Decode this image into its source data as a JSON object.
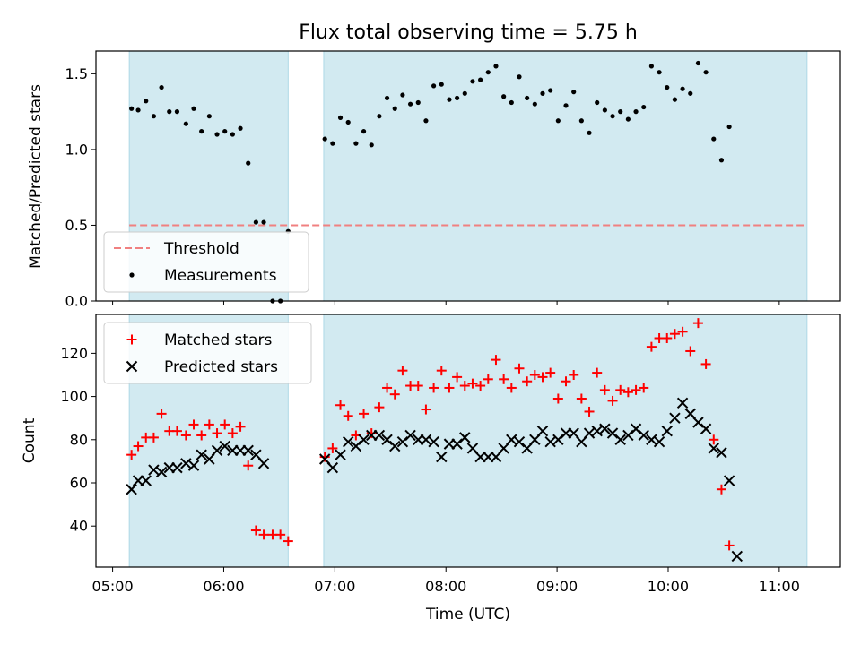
{
  "title": "Flux total observing time = 5.75 h",
  "xlabel": "Time (UTC)",
  "colors": {
    "band": "#add8e6",
    "threshold": "#f08080",
    "matched": "#ff0000",
    "predicted": "#000000",
    "measurement": "#000000"
  },
  "chart_data": [
    {
      "type": "scatter",
      "ylabel": "Matched/Predicted stars",
      "ylim": [
        0,
        1.65
      ],
      "yticks": [
        "0.0",
        "0.5",
        "1.0",
        "1.5"
      ],
      "threshold": 0.5,
      "xlim_hours": [
        4.85,
        11.55
      ],
      "observing_windows_hours": [
        [
          5.15,
          6.58
        ],
        [
          6.9,
          11.25
        ]
      ],
      "legend": {
        "placement": "lower-left",
        "entries": [
          "Threshold",
          "Measurements"
        ]
      },
      "series": [
        {
          "name": "Measurements",
          "marker": "dot",
          "points": [
            [
              5.17,
              1.27
            ],
            [
              5.23,
              1.26
            ],
            [
              5.3,
              1.32
            ],
            [
              5.37,
              1.22
            ],
            [
              5.44,
              1.41
            ],
            [
              5.51,
              1.25
            ],
            [
              5.58,
              1.25
            ],
            [
              5.66,
              1.17
            ],
            [
              5.73,
              1.27
            ],
            [
              5.8,
              1.12
            ],
            [
              5.87,
              1.22
            ],
            [
              5.94,
              1.1
            ],
            [
              6.01,
              1.12
            ],
            [
              6.08,
              1.1
            ],
            [
              6.15,
              1.14
            ],
            [
              6.22,
              0.91
            ],
            [
              6.29,
              0.52
            ],
            [
              6.36,
              0.52
            ],
            [
              6.44,
              0.0
            ],
            [
              6.51,
              0.0
            ],
            [
              6.58,
              0.46
            ],
            [
              6.91,
              1.07
            ],
            [
              6.98,
              1.04
            ],
            [
              7.05,
              1.21
            ],
            [
              7.12,
              1.18
            ],
            [
              7.19,
              1.04
            ],
            [
              7.26,
              1.12
            ],
            [
              7.33,
              1.03
            ],
            [
              7.4,
              1.22
            ],
            [
              7.47,
              1.34
            ],
            [
              7.54,
              1.27
            ],
            [
              7.61,
              1.36
            ],
            [
              7.68,
              1.3
            ],
            [
              7.75,
              1.31
            ],
            [
              7.82,
              1.19
            ],
            [
              7.89,
              1.42
            ],
            [
              7.96,
              1.43
            ],
            [
              8.03,
              1.33
            ],
            [
              8.1,
              1.34
            ],
            [
              8.17,
              1.37
            ],
            [
              8.24,
              1.45
            ],
            [
              8.31,
              1.46
            ],
            [
              8.38,
              1.51
            ],
            [
              8.45,
              1.55
            ],
            [
              8.52,
              1.35
            ],
            [
              8.59,
              1.31
            ],
            [
              8.66,
              1.48
            ],
            [
              8.73,
              1.34
            ],
            [
              8.8,
              1.3
            ],
            [
              8.87,
              1.37
            ],
            [
              8.94,
              1.39
            ],
            [
              9.01,
              1.19
            ],
            [
              9.08,
              1.29
            ],
            [
              9.15,
              1.38
            ],
            [
              9.22,
              1.19
            ],
            [
              9.29,
              1.11
            ],
            [
              9.36,
              1.31
            ],
            [
              9.43,
              1.26
            ],
            [
              9.5,
              1.22
            ],
            [
              9.57,
              1.25
            ],
            [
              9.64,
              1.2
            ],
            [
              9.71,
              1.25
            ],
            [
              9.78,
              1.28
            ],
            [
              9.85,
              1.55
            ],
            [
              9.92,
              1.51
            ],
            [
              9.99,
              1.41
            ],
            [
              10.06,
              1.33
            ],
            [
              10.13,
              1.4
            ],
            [
              10.2,
              1.37
            ],
            [
              10.27,
              1.57
            ],
            [
              10.34,
              1.51
            ],
            [
              10.41,
              1.07
            ],
            [
              10.48,
              0.93
            ],
            [
              10.55,
              1.15
            ]
          ]
        }
      ]
    },
    {
      "type": "scatter",
      "ylabel": "Count",
      "ylim": [
        21,
        138
      ],
      "yticks": [
        "40",
        "60",
        "80",
        "100",
        "120"
      ],
      "xlim_hours": [
        4.85,
        11.55
      ],
      "xticks": [
        "05:00",
        "06:00",
        "07:00",
        "08:00",
        "09:00",
        "10:00",
        "11:00"
      ],
      "observing_windows_hours": [
        [
          5.15,
          6.58
        ],
        [
          6.9,
          11.25
        ]
      ],
      "legend": {
        "placement": "upper-left",
        "entries": [
          "Matched stars",
          "Predicted stars"
        ]
      },
      "series": [
        {
          "name": "Matched stars",
          "marker": "plus",
          "points": [
            [
              5.17,
              73
            ],
            [
              5.23,
              77
            ],
            [
              5.3,
              81
            ],
            [
              5.37,
              81
            ],
            [
              5.44,
              92
            ],
            [
              5.51,
              84
            ],
            [
              5.58,
              84
            ],
            [
              5.66,
              82
            ],
            [
              5.73,
              87
            ],
            [
              5.8,
              82
            ],
            [
              5.87,
              87
            ],
            [
              5.94,
              83
            ],
            [
              6.01,
              87
            ],
            [
              6.08,
              83
            ],
            [
              6.15,
              86
            ],
            [
              6.22,
              68
            ],
            [
              6.29,
              38
            ],
            [
              6.36,
              36
            ],
            [
              6.44,
              36
            ],
            [
              6.51,
              36
            ],
            [
              6.58,
              33
            ],
            [
              6.91,
              72
            ],
            [
              6.98,
              76
            ],
            [
              7.05,
              96
            ],
            [
              7.12,
              91
            ],
            [
              7.19,
              82
            ],
            [
              7.26,
              92
            ],
            [
              7.33,
              83
            ],
            [
              7.4,
              95
            ],
            [
              7.47,
              104
            ],
            [
              7.54,
              101
            ],
            [
              7.61,
              112
            ],
            [
              7.68,
              105
            ],
            [
              7.75,
              105
            ],
            [
              7.82,
              94
            ],
            [
              7.89,
              104
            ],
            [
              7.96,
              112
            ],
            [
              8.03,
              104
            ],
            [
              8.1,
              109
            ],
            [
              8.17,
              105
            ],
            [
              8.24,
              106
            ],
            [
              8.31,
              105
            ],
            [
              8.38,
              108
            ],
            [
              8.45,
              117
            ],
            [
              8.52,
              108
            ],
            [
              8.59,
              104
            ],
            [
              8.66,
              113
            ],
            [
              8.73,
              107
            ],
            [
              8.8,
              110
            ],
            [
              8.87,
              109
            ],
            [
              8.94,
              111
            ],
            [
              9.01,
              99
            ],
            [
              9.08,
              107
            ],
            [
              9.15,
              110
            ],
            [
              9.22,
              99
            ],
            [
              9.29,
              93
            ],
            [
              9.36,
              111
            ],
            [
              9.43,
              103
            ],
            [
              9.5,
              98
            ],
            [
              9.57,
              103
            ],
            [
              9.64,
              102
            ],
            [
              9.71,
              103
            ],
            [
              9.78,
              104
            ],
            [
              9.85,
              123
            ],
            [
              9.92,
              127
            ],
            [
              9.99,
              127
            ],
            [
              10.06,
              129
            ],
            [
              10.13,
              130
            ],
            [
              10.2,
              121
            ],
            [
              10.27,
              134
            ],
            [
              10.34,
              115
            ],
            [
              10.41,
              80
            ],
            [
              10.48,
              57
            ],
            [
              10.55,
              31
            ]
          ]
        },
        {
          "name": "Predicted stars",
          "marker": "cross",
          "points": [
            [
              5.17,
              57
            ],
            [
              5.23,
              61
            ],
            [
              5.3,
              61
            ],
            [
              5.37,
              66
            ],
            [
              5.44,
              65
            ],
            [
              5.51,
              67
            ],
            [
              5.58,
              67
            ],
            [
              5.66,
              69
            ],
            [
              5.73,
              68
            ],
            [
              5.8,
              73
            ],
            [
              5.87,
              71
            ],
            [
              5.94,
              75
            ],
            [
              6.01,
              77
            ],
            [
              6.08,
              75
            ],
            [
              6.15,
              75
            ],
            [
              6.22,
              75
            ],
            [
              6.29,
              73
            ],
            [
              6.36,
              69
            ],
            [
              6.91,
              71
            ],
            [
              6.98,
              67
            ],
            [
              7.05,
              73
            ],
            [
              7.12,
              79
            ],
            [
              7.19,
              77
            ],
            [
              7.26,
              80
            ],
            [
              7.33,
              82
            ],
            [
              7.4,
              82
            ],
            [
              7.47,
              80
            ],
            [
              7.54,
              77
            ],
            [
              7.61,
              79
            ],
            [
              7.68,
              82
            ],
            [
              7.75,
              80
            ],
            [
              7.82,
              80
            ],
            [
              7.89,
              79
            ],
            [
              7.96,
              72
            ],
            [
              8.03,
              78
            ],
            [
              8.1,
              78
            ],
            [
              8.17,
              81
            ],
            [
              8.24,
              76
            ],
            [
              8.31,
              72
            ],
            [
              8.38,
              72
            ],
            [
              8.45,
              72
            ],
            [
              8.52,
              76
            ],
            [
              8.59,
              80
            ],
            [
              8.66,
              79
            ],
            [
              8.73,
              76
            ],
            [
              8.8,
              80
            ],
            [
              8.87,
              84
            ],
            [
              8.94,
              79
            ],
            [
              9.01,
              80
            ],
            [
              9.08,
              83
            ],
            [
              9.15,
              83
            ],
            [
              9.22,
              79
            ],
            [
              9.29,
              83
            ],
            [
              9.36,
              84
            ],
            [
              9.43,
              85
            ],
            [
              9.5,
              83
            ],
            [
              9.57,
              80
            ],
            [
              9.64,
              82
            ],
            [
              9.71,
              85
            ],
            [
              9.78,
              82
            ],
            [
              9.85,
              80
            ],
            [
              9.92,
              79
            ],
            [
              9.99,
              84
            ],
            [
              10.06,
              90
            ],
            [
              10.13,
              97
            ],
            [
              10.2,
              92
            ],
            [
              10.27,
              88
            ],
            [
              10.34,
              85
            ],
            [
              10.41,
              76
            ],
            [
              10.48,
              74
            ],
            [
              10.55,
              61
            ],
            [
              10.62,
              26
            ]
          ]
        }
      ]
    }
  ]
}
